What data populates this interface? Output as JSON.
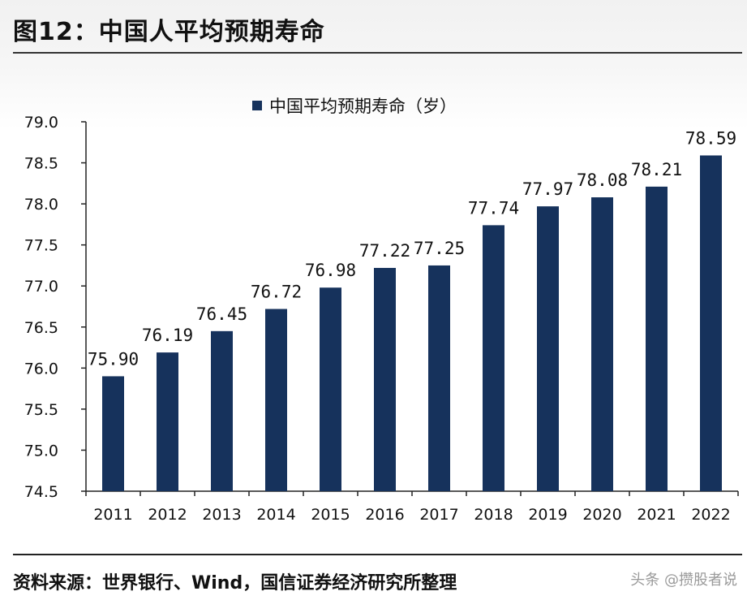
{
  "figure": {
    "title": "图12：中国人平均预期寿命",
    "source": "资料来源：世界银行、Wind，国信证券经济研究所整理",
    "watermark": "头条 @攒股者说"
  },
  "colors": {
    "bar": "#16325c",
    "axis": "#222222"
  },
  "chart_data": {
    "type": "bar",
    "categories": [
      "2011",
      "2012",
      "2013",
      "2014",
      "2015",
      "2016",
      "2017",
      "2018",
      "2019",
      "2020",
      "2021",
      "2022"
    ],
    "series": [
      {
        "name": "中国平均预期寿命（岁）",
        "values": [
          75.9,
          76.19,
          76.45,
          76.72,
          76.98,
          77.22,
          77.25,
          77.74,
          77.97,
          78.08,
          78.21,
          78.59
        ],
        "labels": [
          "75.90",
          "76.19",
          "76.45",
          "76.72",
          "76.98",
          "77.22",
          "77.25",
          "77.74",
          "77.97",
          "78.08",
          "78.21",
          "78.59"
        ]
      }
    ],
    "ylim": [
      74.5,
      79.0
    ],
    "yticks": [
      74.5,
      75.0,
      75.5,
      76.0,
      76.5,
      77.0,
      77.5,
      78.0,
      78.5,
      79.0
    ],
    "ytick_labels": [
      "74.5",
      "75.0",
      "75.5",
      "76.0",
      "76.5",
      "77.0",
      "77.5",
      "78.0",
      "78.5",
      "79.0"
    ],
    "grid": false,
    "legend_position": "top-center"
  }
}
